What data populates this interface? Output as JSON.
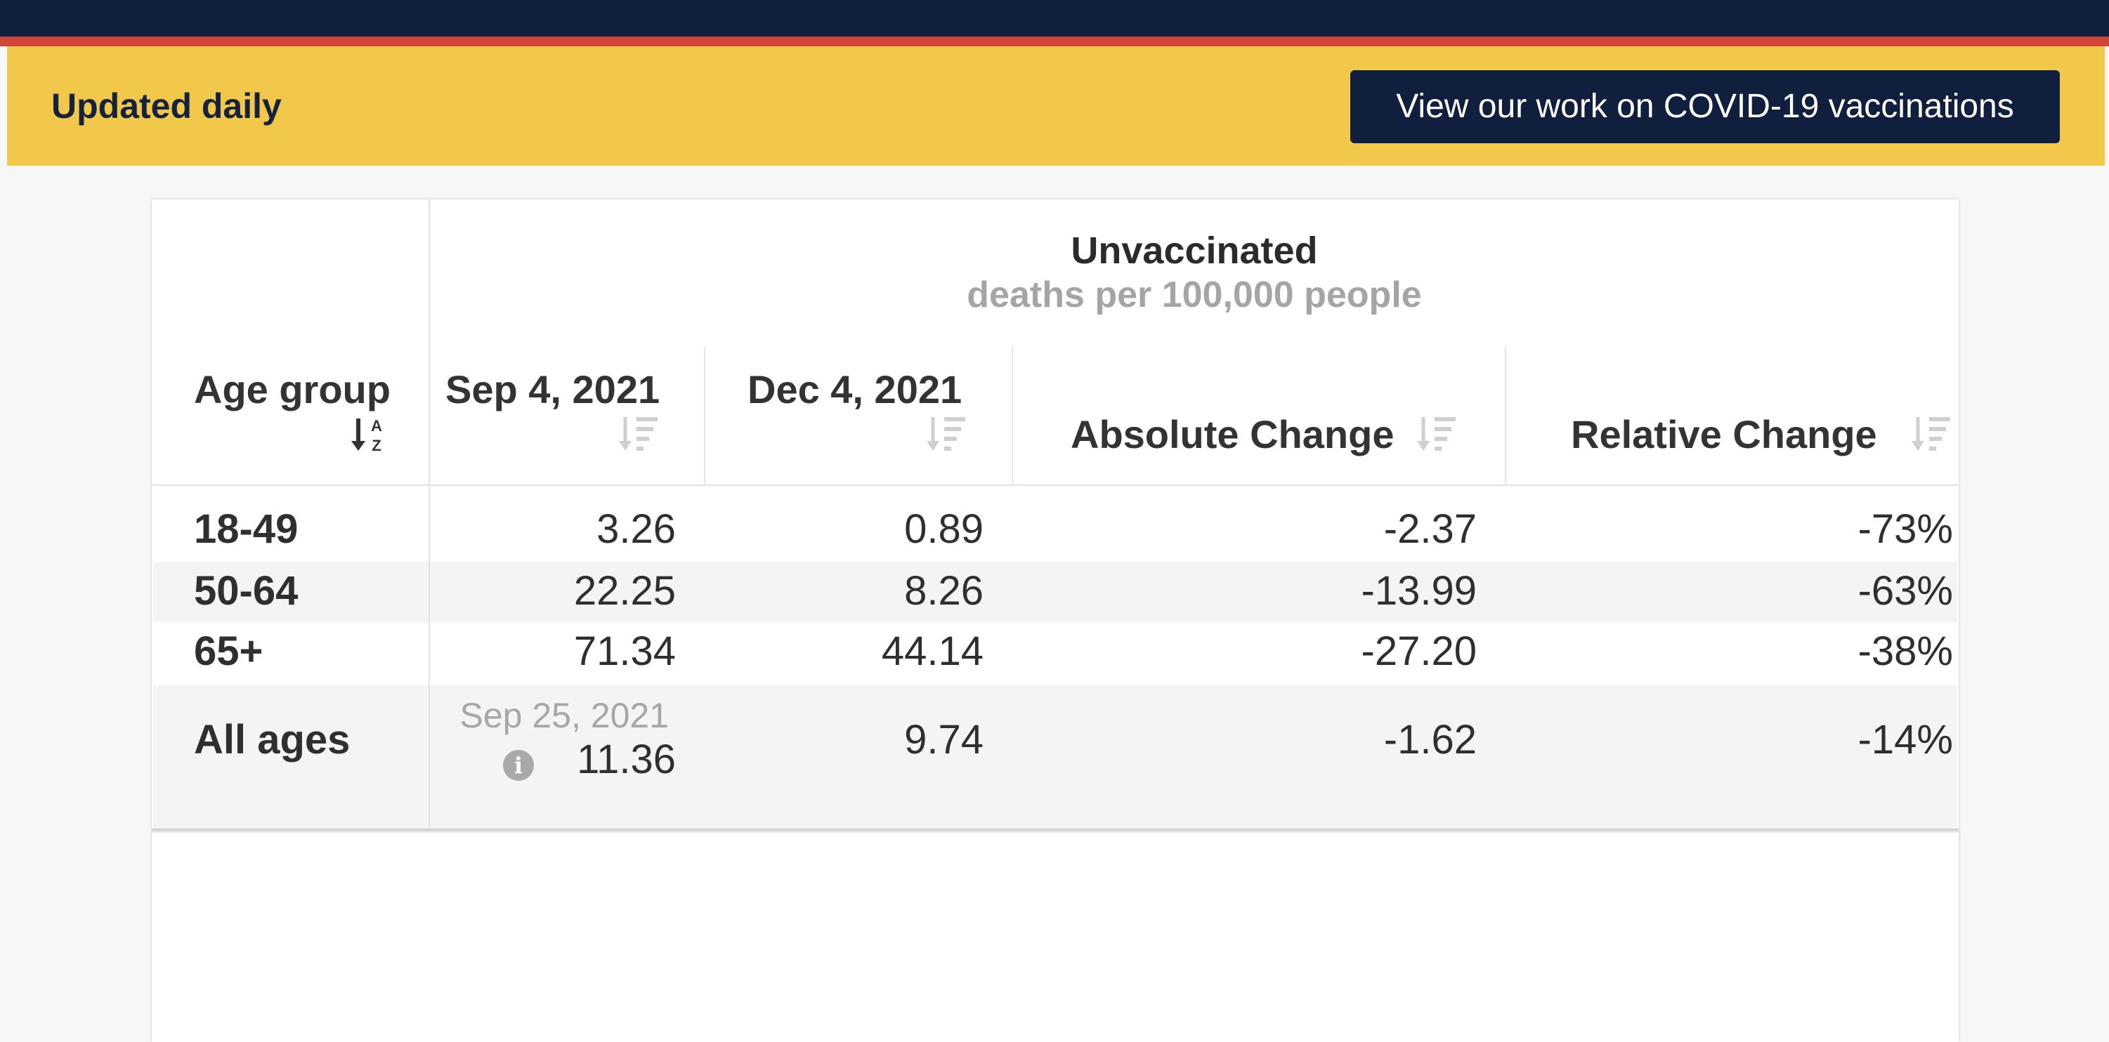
{
  "banner": {
    "label": "Updated daily",
    "button_label": "View our work on COVID-19 vaccinations"
  },
  "table": {
    "group_title": "Unvaccinated",
    "group_subtitle": "deaths per 100,000 people",
    "columns": [
      {
        "label": "Age group",
        "sort_icon": "sort-alpha-icon"
      },
      {
        "label": "Sep 4, 2021",
        "sort_icon": "sort-desc-icon"
      },
      {
        "label": "Dec 4, 2021",
        "sort_icon": "sort-desc-icon"
      },
      {
        "label": "Absolute Change",
        "sort_icon": "sort-desc-icon"
      },
      {
        "label": "Relative Change",
        "sort_icon": "sort-desc-icon"
      }
    ],
    "rows": [
      {
        "group": "18-49",
        "sep": "3.26",
        "dec": "0.89",
        "abs": "-2.37",
        "rel": "-73%"
      },
      {
        "group": "50-64",
        "sep": "22.25",
        "dec": "8.26",
        "abs": "-13.99",
        "rel": "-63%"
      },
      {
        "group": "65+",
        "sep": "71.34",
        "dec": "44.14",
        "abs": "-27.20",
        "rel": "-38%"
      },
      {
        "group": "All ages",
        "sep_note": "Sep 25, 2021",
        "sep": "11.36",
        "dec": "9.74",
        "abs": "-1.62",
        "rel": "-14%"
      }
    ]
  },
  "colors": {
    "navy": "#0f1f3d",
    "red_stripe": "#d1463a",
    "banner_yellow": "#f2c84b"
  }
}
